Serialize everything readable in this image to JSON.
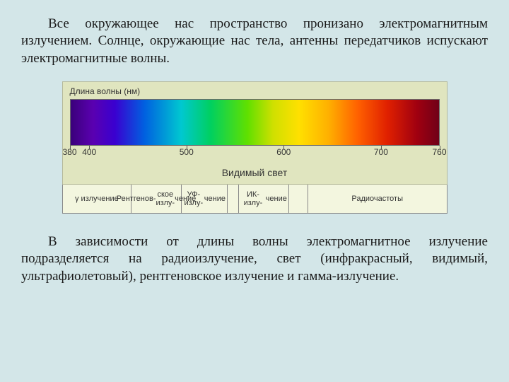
{
  "paragraphs": {
    "top": "Все окружающее нас пространство пронизано электромагнитным излучением. Солнце, окружающие нас тела, антенны передатчиков испускают электромагнитные волны.",
    "bottom": "В зависимости от длины волны электромагнитное излучение подразделяется на радиоизлучение, свет (инфракрасный, видимый, ультрафиолетовый), рентгеновское излучение и гамма-излучение."
  },
  "spectrum": {
    "header": "Длина волны (нм)",
    "axis_title": "Видимый свет",
    "range_nm": {
      "min": 380,
      "max": 760
    },
    "gradient_stops": [
      {
        "pct": 0,
        "color": "#3a007a"
      },
      {
        "pct": 6,
        "color": "#5a00b0"
      },
      {
        "pct": 12,
        "color": "#3a00d0"
      },
      {
        "pct": 20,
        "color": "#0060e0"
      },
      {
        "pct": 30,
        "color": "#00c8d0"
      },
      {
        "pct": 38,
        "color": "#00d060"
      },
      {
        "pct": 48,
        "color": "#60e000"
      },
      {
        "pct": 55,
        "color": "#d0e000"
      },
      {
        "pct": 62,
        "color": "#ffe000"
      },
      {
        "pct": 70,
        "color": "#ffb000"
      },
      {
        "pct": 78,
        "color": "#ff6000"
      },
      {
        "pct": 86,
        "color": "#e02000"
      },
      {
        "pct": 94,
        "color": "#a00010"
      },
      {
        "pct": 100,
        "color": "#700018"
      }
    ],
    "ticks": [
      {
        "pct": 0,
        "label": "380"
      },
      {
        "pct": 5.3,
        "label": "400"
      },
      {
        "pct": 31.6,
        "label": "500"
      },
      {
        "pct": 57.9,
        "label": "600"
      },
      {
        "pct": 84.2,
        "label": "700"
      },
      {
        "pct": 100,
        "label": "760"
      }
    ],
    "bands": [
      {
        "label": "γ излучение",
        "width_pct": 18
      },
      {
        "label": "Рентгенов-\nское излу-\nчение",
        "width_pct": 13
      },
      {
        "label": "УФ-излу-\nчение",
        "width_pct": 12
      },
      {
        "gap": true,
        "width_pct": 3
      },
      {
        "label": "ИК-излу-\nчение",
        "width_pct": 13
      },
      {
        "gap": true,
        "width_pct": 5
      },
      {
        "label": "Радиочастоты",
        "width_pct": 36
      }
    ],
    "colors": {
      "page_bg": "#d3e6e8",
      "figure_bg_top": "#e0e5bf",
      "figure_bg_bands": "#f3f6df",
      "border": "#888888",
      "text": "#333333"
    },
    "fonts": {
      "body_family": "Times New Roman",
      "body_size_pt": 14,
      "figure_family": "Arial",
      "figure_label_size_pt": 9,
      "figure_title_size_pt": 11
    }
  }
}
